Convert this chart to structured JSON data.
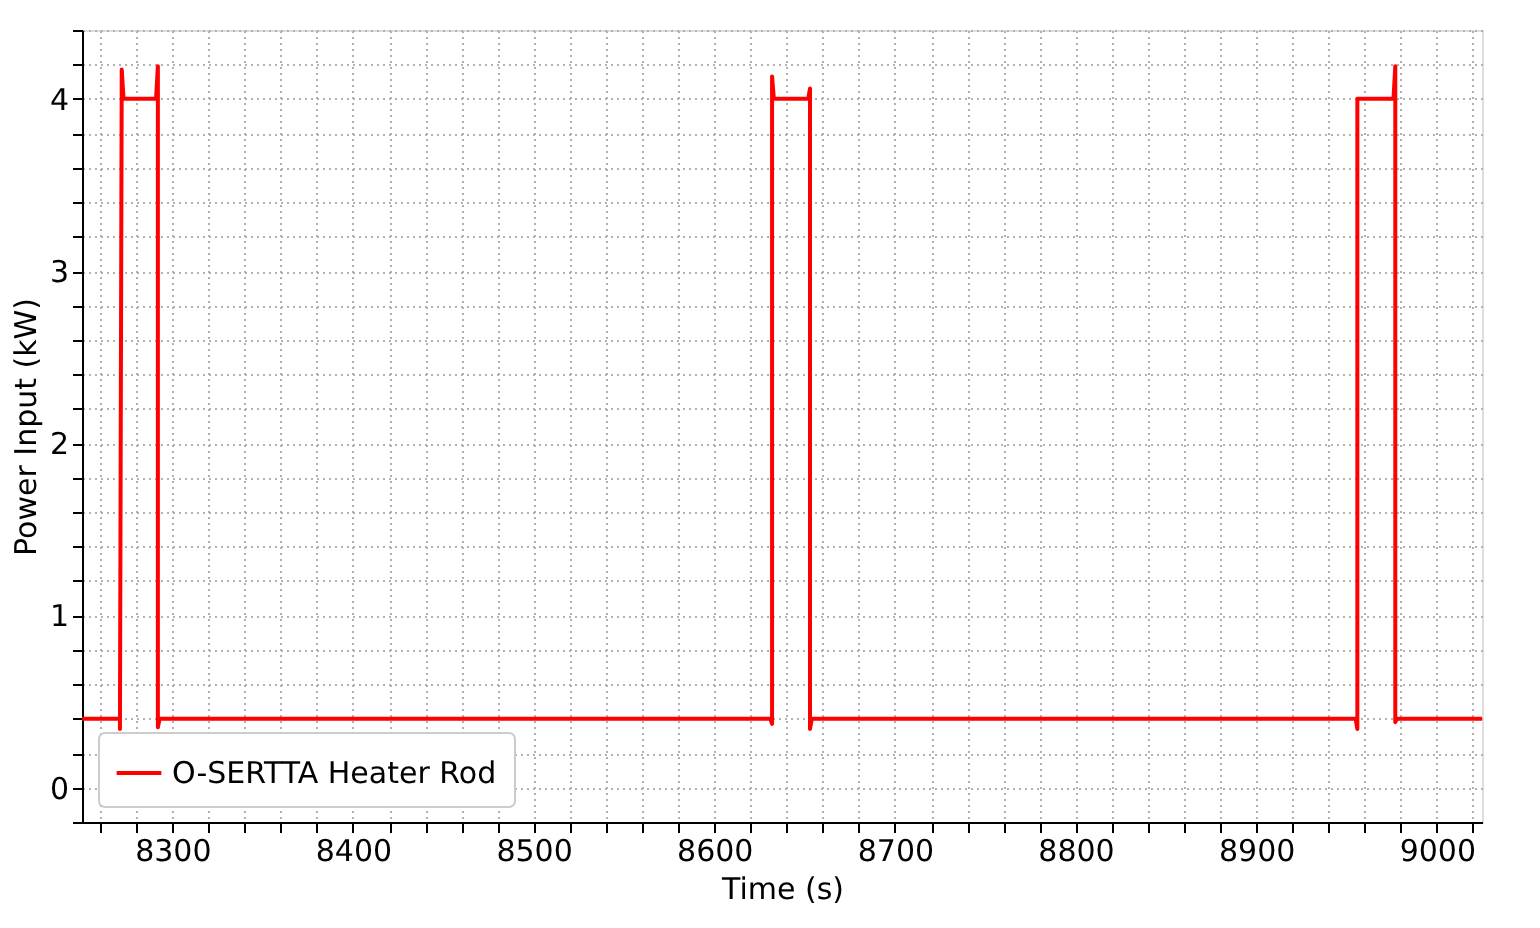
{
  "chart_data": {
    "type": "line",
    "xlabel": "Time (s)",
    "ylabel": "Power Input (kW)",
    "series": [
      {
        "name": "O-SERTTA Heater Rod",
        "color": "#ff0000",
        "x": [
          8250,
          8271,
          8271,
          8272,
          8273,
          8291,
          8292,
          8292,
          8293,
          8631,
          8632,
          8632,
          8633,
          8652,
          8653,
          8653,
          8654,
          8955,
          8956,
          8956,
          8957,
          8976,
          8977,
          8977,
          8978,
          9025
        ],
        "values": [
          0.4,
          0.4,
          0.34,
          4.17,
          4.0,
          4.0,
          4.19,
          0.35,
          0.4,
          0.4,
          0.37,
          4.13,
          4.0,
          4.0,
          4.06,
          0.34,
          0.4,
          0.4,
          0.34,
          4.0,
          4.0,
          4.0,
          4.19,
          0.38,
          0.4,
          0.4
        ]
      }
    ],
    "xlim": [
      8250,
      9025
    ],
    "xticks": [
      {
        "value": 8260,
        "label": null
      },
      {
        "value": 8280,
        "label": null
      },
      8300,
      {
        "value": 8320,
        "label": null
      },
      {
        "value": 8340,
        "label": null
      },
      {
        "value": 8360,
        "label": null
      },
      {
        "value": 8380,
        "label": null
      },
      8400,
      {
        "value": 8420,
        "label": null
      },
      {
        "value": 8440,
        "label": null
      },
      {
        "value": 8460,
        "label": null
      },
      {
        "value": 8480,
        "label": null
      },
      8500,
      {
        "value": 8520,
        "label": null
      },
      {
        "value": 8540,
        "label": null
      },
      {
        "value": 8560,
        "label": null
      },
      {
        "value": 8580,
        "label": null
      },
      8600,
      {
        "value": 8620,
        "label": null
      },
      {
        "value": 8640,
        "label": null
      },
      {
        "value": 8660,
        "label": null
      },
      {
        "value": 8680,
        "label": null
      },
      8700,
      {
        "value": 8720,
        "label": null
      },
      {
        "value": 8740,
        "label": null
      },
      {
        "value": 8760,
        "label": null
      },
      {
        "value": 8780,
        "label": null
      },
      8800,
      {
        "value": 8820,
        "label": null
      },
      {
        "value": 8840,
        "label": null
      },
      {
        "value": 8860,
        "label": null
      },
      {
        "value": 8880,
        "label": null
      },
      8900,
      {
        "value": 8920,
        "label": null
      },
      {
        "value": 8940,
        "label": null
      },
      {
        "value": 8960,
        "label": null
      },
      {
        "value": 8980,
        "label": null
      },
      9000,
      {
        "value": 9020,
        "label": null
      }
    ],
    "ylim": [
      -0.2,
      4.4
    ],
    "yticks": [
      {
        "value": -0.2,
        "label": null
      },
      0,
      {
        "value": 0.2,
        "label": null
      },
      {
        "value": 0.4,
        "label": null
      },
      {
        "value": 0.6,
        "label": null
      },
      {
        "value": 0.8,
        "label": null
      },
      1,
      {
        "value": 1.2,
        "label": null
      },
      {
        "value": 1.4,
        "label": null
      },
      {
        "value": 1.6,
        "label": null
      },
      {
        "value": 1.8,
        "label": null
      },
      2,
      {
        "value": 2.2,
        "label": null
      },
      {
        "value": 2.4,
        "label": null
      },
      {
        "value": 2.6,
        "label": null
      },
      {
        "value": 2.8,
        "label": null
      },
      3,
      {
        "value": 3.2,
        "label": null
      },
      {
        "value": 3.4,
        "label": null
      },
      {
        "value": 3.6,
        "label": null
      },
      {
        "value": 3.8,
        "label": null
      },
      4,
      {
        "value": 4.2,
        "label": null
      },
      {
        "value": 4.4,
        "label": null
      }
    ],
    "grid": true,
    "legend": "bottom left",
    "line_style": "solid",
    "marker": "none"
  }
}
